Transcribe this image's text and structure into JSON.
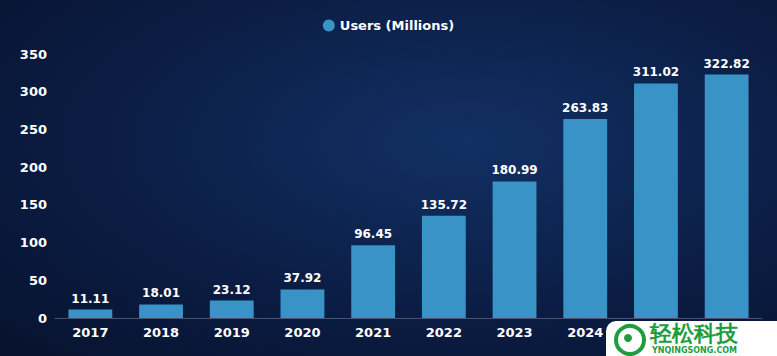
{
  "chart_data": {
    "type": "bar",
    "categories": [
      "2017",
      "2018",
      "2019",
      "2020",
      "2021",
      "2022",
      "2023",
      "2024",
      null,
      null
    ],
    "series": [
      {
        "name": "Users (Millions)",
        "color": "#3a93c6",
        "values": [
          11.11,
          18.01,
          23.12,
          37.92,
          96.45,
          135.72,
          180.99,
          263.83,
          311.02,
          322.82
        ]
      }
    ],
    "ylim": [
      0,
      350
    ],
    "yticks": [
      0,
      50,
      100,
      150,
      200,
      250,
      300,
      350
    ],
    "grid": false,
    "legend": "top",
    "data_labels": true,
    "annotations": [
      "轻松科技",
      "YNQINGSONG.COM"
    ]
  }
}
